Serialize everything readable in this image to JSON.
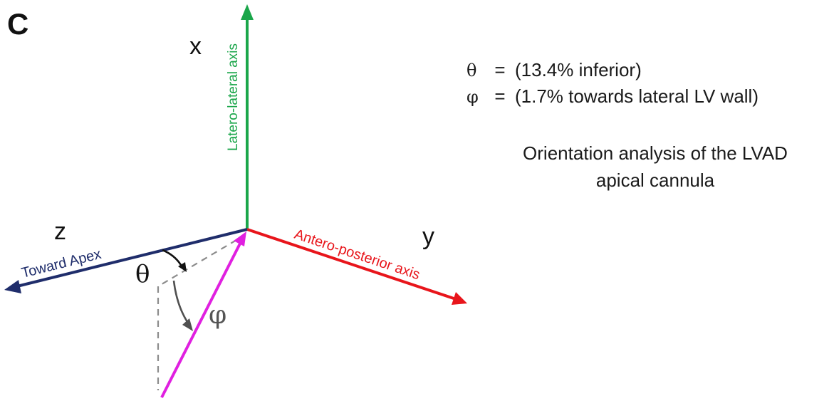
{
  "panel": {
    "label": "C"
  },
  "axes": {
    "x": {
      "letter": "x",
      "name": "Latero-lateral axis",
      "color": "#1aa64a"
    },
    "y": {
      "letter": "y",
      "name": "Antero-posterior axis",
      "color": "#e8151b"
    },
    "z": {
      "letter": "z",
      "name": "Toward Apex",
      "color": "#1f2d6b"
    }
  },
  "cannula": {
    "color": "#e020e0"
  },
  "angles": {
    "theta": {
      "symbol": "θ",
      "equals": "=",
      "value": "(13.4% inferior)"
    },
    "phi": {
      "symbol": "φ",
      "equals": "=",
      "value": "(1.7% towards lateral LV wall)"
    }
  },
  "caption": {
    "line1": "Orientation analysis of the LVAD",
    "line2": "apical cannula"
  }
}
